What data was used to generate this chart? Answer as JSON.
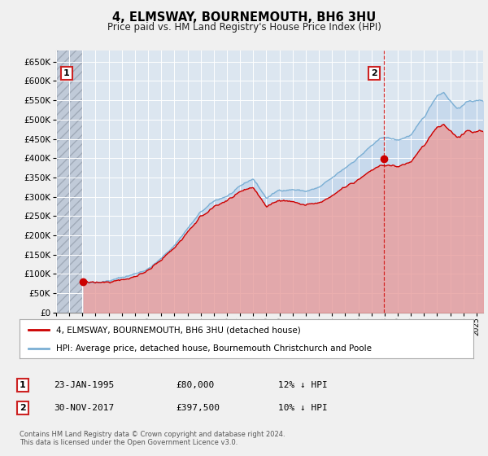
{
  "title": "4, ELMSWAY, BOURNEMOUTH, BH6 3HU",
  "subtitle": "Price paid vs. HM Land Registry's House Price Index (HPI)",
  "fig_bg": "#f0f0f0",
  "plot_bg": "#dce6f0",
  "hatch_bg": "#c8d0dc",
  "grid_color": "#ffffff",
  "ylim": [
    0,
    680000
  ],
  "yticks": [
    0,
    50000,
    100000,
    150000,
    200000,
    250000,
    300000,
    350000,
    400000,
    450000,
    500000,
    550000,
    600000,
    650000
  ],
  "xlim_start": 1993.0,
  "xlim_end": 2025.5,
  "xticks": [
    1993,
    1994,
    1995,
    1996,
    1997,
    1998,
    1999,
    2000,
    2001,
    2002,
    2003,
    2004,
    2005,
    2006,
    2007,
    2008,
    2009,
    2010,
    2011,
    2012,
    2013,
    2014,
    2015,
    2016,
    2017,
    2018,
    2019,
    2020,
    2021,
    2022,
    2023,
    2024,
    2025
  ],
  "data_start": 1995.07,
  "sale1_x": 1995.07,
  "sale1_y": 80000,
  "sale2_x": 2017.92,
  "sale2_y": 397500,
  "red_color": "#cc0000",
  "blue_color": "#7bafd4",
  "blue_fill": "#c5d8ec",
  "red_fill": "#e8a0a0",
  "legend_label_red": "4, ELMSWAY, BOURNEMOUTH, BH6 3HU (detached house)",
  "legend_label_blue": "HPI: Average price, detached house, Bournemouth Christchurch and Poole",
  "note1_date": "23-JAN-1995",
  "note1_price": "£80,000",
  "note1_hpi": "12% ↓ HPI",
  "note2_date": "30-NOV-2017",
  "note2_price": "£397,500",
  "note2_hpi": "10% ↓ HPI",
  "footer": "Contains HM Land Registry data © Crown copyright and database right 2024.\nThis data is licensed under the Open Government Licence v3.0."
}
